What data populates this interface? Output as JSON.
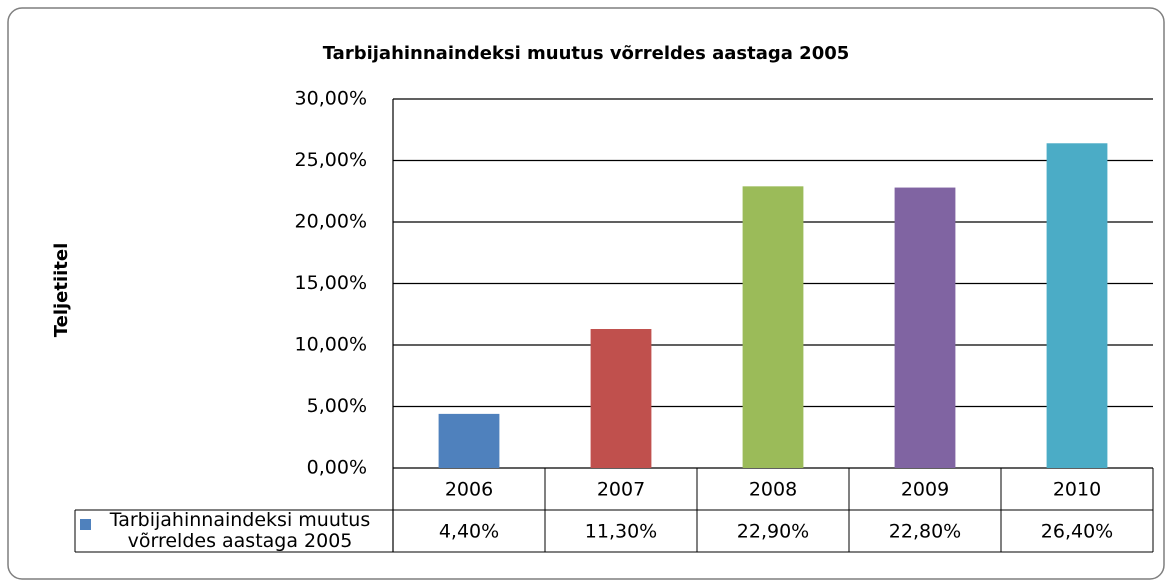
{
  "chart_data": {
    "type": "bar",
    "title": "Tarbijahinnaindeksi muutus võrreldes aastaga 2005",
    "y_label": "Teljetiitel",
    "categories": [
      "2006",
      "2007",
      "2008",
      "2009",
      "2010"
    ],
    "series": [
      {
        "name": "Tarbijahinnaindeksi muutus võrreldes aastaga 2005",
        "color": "#4f81bd",
        "values": [
          4.4,
          11.3,
          22.9,
          22.8,
          26.4
        ],
        "value_labels": [
          "4,40%",
          "11,30%",
          "22,90%",
          "22,80%",
          "26,40%"
        ],
        "colors": [
          "#4f81bd",
          "#c0504d",
          "#9bbb59",
          "#8064a2",
          "#4bacc6"
        ]
      }
    ],
    "ylim": [
      0,
      30
    ],
    "yticks": [
      {
        "value": 0,
        "label": "0,00%"
      },
      {
        "value": 5,
        "label": "5,00%"
      },
      {
        "value": 10,
        "label": "10,00%"
      },
      {
        "value": 15,
        "label": "15,00%"
      },
      {
        "value": 20,
        "label": "20,00%"
      },
      {
        "value": 25,
        "label": "25,00%"
      },
      {
        "value": 30,
        "label": "30,00%"
      }
    ],
    "grid": true
  }
}
